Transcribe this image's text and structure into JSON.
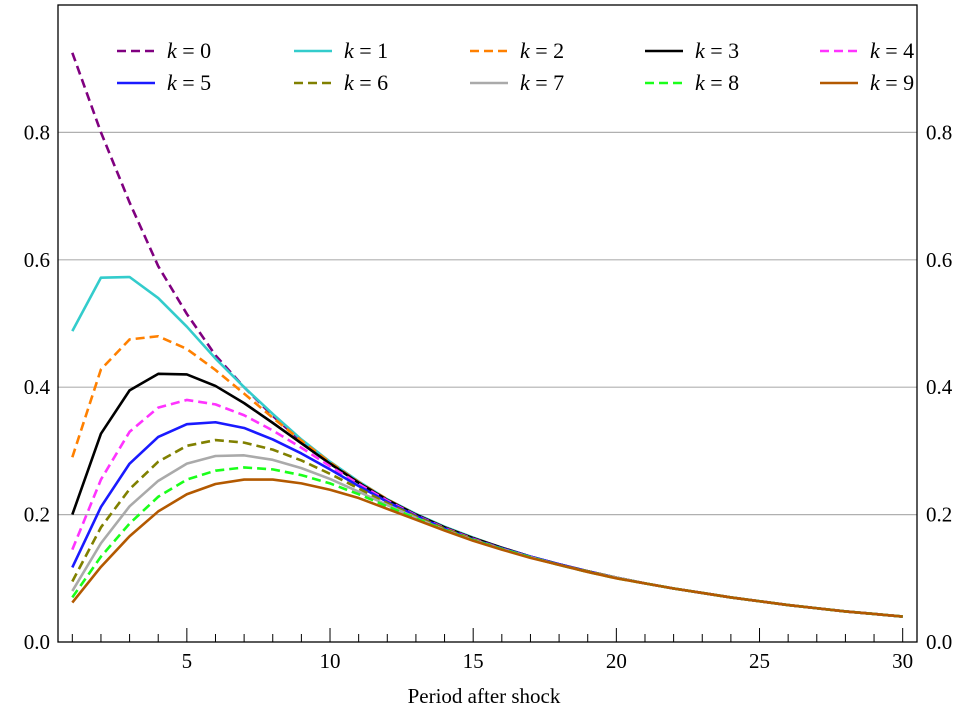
{
  "chart_data": {
    "type": "line",
    "title": "",
    "xlabel": "Period after shock",
    "ylabel": "",
    "xlim": [
      0.5,
      30.5
    ],
    "ylim": [
      0,
      1.0
    ],
    "x_ticks": [
      5,
      10,
      15,
      20,
      25,
      30
    ],
    "x_tick_labels": [
      "5",
      "10",
      "15",
      "20",
      "25",
      "30"
    ],
    "y_ticks": [
      0,
      0.2,
      0.4,
      0.6,
      0.8
    ],
    "y_tick_labels": [
      "0.0",
      "0.2",
      "0.4",
      "0.6",
      "0.8"
    ],
    "grid": "horizontal",
    "legend_position": "top",
    "x": [
      1,
      2,
      3,
      4,
      5,
      6,
      7,
      8,
      9,
      10,
      11,
      12,
      13,
      14,
      15,
      16,
      17,
      18,
      19,
      20,
      21,
      22,
      23,
      24,
      25,
      26,
      27,
      28,
      29,
      30
    ],
    "series": [
      {
        "name": "k = 0",
        "style": "dashed",
        "color": "#800080",
        "values": [
          0.925,
          0.8,
          0.69,
          0.59,
          0.515,
          0.45,
          0.4,
          0.355,
          0.315,
          0.28,
          0.25,
          0.222,
          0.2,
          0.18,
          0.163,
          0.148,
          0.134,
          0.122,
          0.111,
          0.101,
          0.092,
          0.084,
          0.077,
          0.07,
          0.064,
          0.058,
          0.053,
          0.048,
          0.044,
          0.04
        ]
      },
      {
        "name": "k = 1",
        "style": "solid",
        "color": "#33cccc",
        "values": [
          0.488,
          0.572,
          0.573,
          0.54,
          0.495,
          0.445,
          0.4,
          0.358,
          0.318,
          0.283,
          0.252,
          0.224,
          0.201,
          0.181,
          0.164,
          0.148,
          0.134,
          0.122,
          0.111,
          0.101,
          0.092,
          0.084,
          0.077,
          0.07,
          0.064,
          0.058,
          0.053,
          0.048,
          0.044,
          0.04
        ]
      },
      {
        "name": "k = 2",
        "style": "dashed",
        "color": "#ff8000",
        "values": [
          0.29,
          0.428,
          0.475,
          0.48,
          0.46,
          0.427,
          0.39,
          0.352,
          0.316,
          0.282,
          0.251,
          0.224,
          0.2,
          0.18,
          0.163,
          0.148,
          0.134,
          0.122,
          0.111,
          0.101,
          0.092,
          0.084,
          0.077,
          0.07,
          0.064,
          0.058,
          0.053,
          0.048,
          0.044,
          0.04
        ]
      },
      {
        "name": "k = 3",
        "style": "solid",
        "color": "#000000",
        "values": [
          0.2,
          0.327,
          0.395,
          0.421,
          0.42,
          0.402,
          0.375,
          0.344,
          0.312,
          0.28,
          0.25,
          0.223,
          0.2,
          0.18,
          0.163,
          0.148,
          0.134,
          0.122,
          0.111,
          0.101,
          0.092,
          0.084,
          0.077,
          0.07,
          0.064,
          0.058,
          0.053,
          0.048,
          0.044,
          0.04
        ]
      },
      {
        "name": "k = 4",
        "style": "dashed",
        "color": "#ff33ff",
        "values": [
          0.145,
          0.255,
          0.33,
          0.368,
          0.38,
          0.373,
          0.356,
          0.332,
          0.305,
          0.276,
          0.248,
          0.222,
          0.199,
          0.179,
          0.162,
          0.147,
          0.134,
          0.122,
          0.111,
          0.101,
          0.092,
          0.084,
          0.077,
          0.07,
          0.064,
          0.058,
          0.053,
          0.048,
          0.044,
          0.04
        ]
      },
      {
        "name": "k = 5",
        "style": "solid",
        "color": "#1a1aff",
        "values": [
          0.117,
          0.212,
          0.28,
          0.322,
          0.342,
          0.345,
          0.336,
          0.318,
          0.296,
          0.271,
          0.245,
          0.22,
          0.198,
          0.178,
          0.161,
          0.147,
          0.134,
          0.122,
          0.111,
          0.101,
          0.092,
          0.084,
          0.077,
          0.07,
          0.064,
          0.058,
          0.053,
          0.048,
          0.044,
          0.04
        ]
      },
      {
        "name": "k = 6",
        "style": "dashed",
        "color": "#808000",
        "values": [
          0.095,
          0.18,
          0.24,
          0.283,
          0.308,
          0.317,
          0.313,
          0.302,
          0.285,
          0.264,
          0.241,
          0.218,
          0.197,
          0.178,
          0.161,
          0.146,
          0.133,
          0.121,
          0.111,
          0.101,
          0.092,
          0.084,
          0.077,
          0.07,
          0.064,
          0.058,
          0.053,
          0.048,
          0.044,
          0.04
        ]
      },
      {
        "name": "k = 7",
        "style": "solid",
        "color": "#aaaaaa",
        "values": [
          0.08,
          0.155,
          0.213,
          0.253,
          0.28,
          0.292,
          0.293,
          0.286,
          0.273,
          0.256,
          0.236,
          0.215,
          0.195,
          0.176,
          0.16,
          0.146,
          0.133,
          0.121,
          0.11,
          0.101,
          0.092,
          0.084,
          0.077,
          0.07,
          0.064,
          0.058,
          0.053,
          0.048,
          0.044,
          0.04
        ]
      },
      {
        "name": "k = 8",
        "style": "dashed",
        "color": "#1aff1a",
        "values": [
          0.07,
          0.134,
          0.186,
          0.228,
          0.255,
          0.269,
          0.274,
          0.271,
          0.262,
          0.249,
          0.232,
          0.213,
          0.194,
          0.176,
          0.16,
          0.146,
          0.133,
          0.121,
          0.11,
          0.1,
          0.092,
          0.084,
          0.077,
          0.07,
          0.064,
          0.058,
          0.053,
          0.048,
          0.044,
          0.04
        ]
      },
      {
        "name": "k = 9",
        "style": "solid",
        "color": "#b35900",
        "values": [
          0.062,
          0.118,
          0.166,
          0.205,
          0.232,
          0.248,
          0.255,
          0.255,
          0.249,
          0.239,
          0.226,
          0.209,
          0.192,
          0.175,
          0.159,
          0.145,
          0.132,
          0.121,
          0.11,
          0.1,
          0.092,
          0.084,
          0.077,
          0.07,
          0.064,
          0.058,
          0.053,
          0.048,
          0.044,
          0.04
        ]
      }
    ]
  }
}
